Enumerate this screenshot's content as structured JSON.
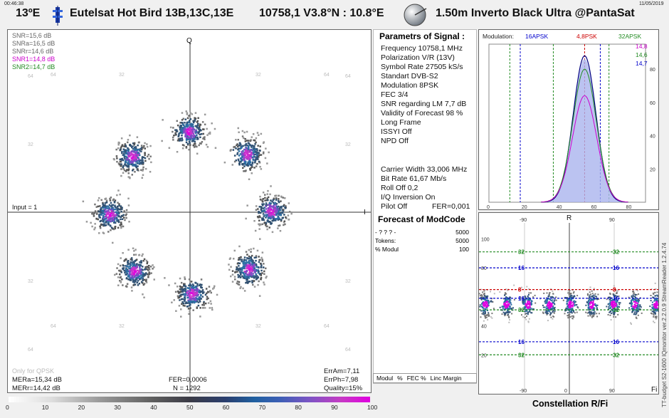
{
  "header": {
    "time": "00:46:38",
    "date": "11/05/2019",
    "orbital_position": "13ºE",
    "satellite": "Eutelsat Hot Bird 13B,13C,13E",
    "tp": "10758,1  V3.8°N : 10.8°E",
    "dish": "1.50m  Inverto Black Ultra @PantaSat"
  },
  "constellation": {
    "snr_lines": [
      {
        "text": "SNR=15,6 dB",
        "color": "#666666"
      },
      {
        "text": "SNRa=16,5 dB",
        "color": "#666666"
      },
      {
        "text": "SNRr=14,6 dB",
        "color": "#666666"
      },
      {
        "text": "SNR1=14,8 dB",
        "color": "#cc00cc"
      },
      {
        "text": "SNR2=14,7 dB",
        "color": "#228b22"
      }
    ],
    "q_label": "Q",
    "i_label": "I",
    "input_label": "Input = 1",
    "grid_labels": {
      "top": [
        "64",
        "32",
        "32",
        "64"
      ],
      "left": [
        "64",
        "32",
        "32",
        "64"
      ],
      "right": [
        "64",
        "32",
        "32",
        "64"
      ],
      "bottom": [
        "64",
        "32",
        "32",
        "64"
      ]
    },
    "only_for_qpsk": "Only for QPSK",
    "mera": "MERa=15,34 dB",
    "merr": "MERr=14,42 dB",
    "fer": "FER=0,0006",
    "n": "N = 1292",
    "erram": "ErrAm=7,11",
    "errph": "ErrPh=7,98",
    "quality": "Quality=15%"
  },
  "params": {
    "title": "Parametrs of Signal :",
    "lines": [
      "Frequency  10758,1 MHz",
      "Polarization   V/R (13V)",
      "Symbol Rate  27505 kS/s",
      "Standart  DVB-S2",
      "Modulation   8PSK",
      "FEC  3/4",
      "SNR regarding LM  7,7 dB",
      "Validity of Forecast  98 %",
      "Long  Frame",
      "ISSYI  Off",
      "NPD   Off"
    ],
    "lines2": [
      "Carrier Width   33,006 MHz",
      "Bit Rate  61,67 Mb/s",
      "Roll Off  0,2",
      "I/Q Inversion    On"
    ],
    "pilot": "Pilot   Off",
    "fer": "FER=0,001",
    "forecast_title": "Forecast of ModCode",
    "forecast_rows": [
      {
        "label": "- ? ? ? -",
        "value": "5000"
      },
      {
        "label": "Tokens:",
        "value": "5000"
      },
      {
        "label": "% Modul",
        "value": "100"
      }
    ],
    "footer_cols": [
      "Modul",
      "%",
      "FEC %",
      "Linc Margin"
    ]
  },
  "histogram": {
    "modulation_label": "Modulation:",
    "markers": [
      {
        "text": "16APSK",
        "color": "#0000cc"
      },
      {
        "text": "4,8PSK",
        "color": "#cc0000"
      },
      {
        "text": "32APSK",
        "color": "#228b22"
      }
    ],
    "legend": [
      {
        "text": "14,8",
        "color": "#cc00cc"
      },
      {
        "text": "14,6",
        "color": "#228b22"
      },
      {
        "text": "14,7",
        "color": "#0000cc"
      }
    ],
    "y_ticks": [
      "80",
      "60",
      "40",
      "20"
    ],
    "x_ticks": [
      "0",
      "20",
      "40",
      "60",
      "80"
    ]
  },
  "polar": {
    "r_label": "R",
    "fi_label": "Fi",
    "top_ticks": [
      "-90",
      "90"
    ],
    "bottom_ticks": [
      "-90",
      "0",
      "90"
    ],
    "y_ticks": [
      "100",
      "80",
      "60",
      "40",
      "20"
    ],
    "ring_labels": [
      {
        "text": "32",
        "color": "#228b22"
      },
      {
        "text": "16",
        "color": "#0000cc"
      },
      {
        "text": "8",
        "color": "#cc0000"
      },
      {
        "text": "16",
        "color": "#0000cc"
      },
      {
        "text": "32",
        "color": "#228b22"
      },
      {
        "text": "16",
        "color": "#0000cc"
      },
      {
        "text": "32",
        "color": "#228b22"
      }
    ],
    "title": "Constellation  R/Fi",
    "side_text": "TT-budget S2-1600   IQmonitor  ver.2.2.0.9   StreamReader 1.2.4.74"
  },
  "colorbar": {
    "ticks": [
      "0",
      "10",
      "20",
      "30",
      "40",
      "50",
      "60",
      "70",
      "80",
      "90",
      "100"
    ]
  }
}
